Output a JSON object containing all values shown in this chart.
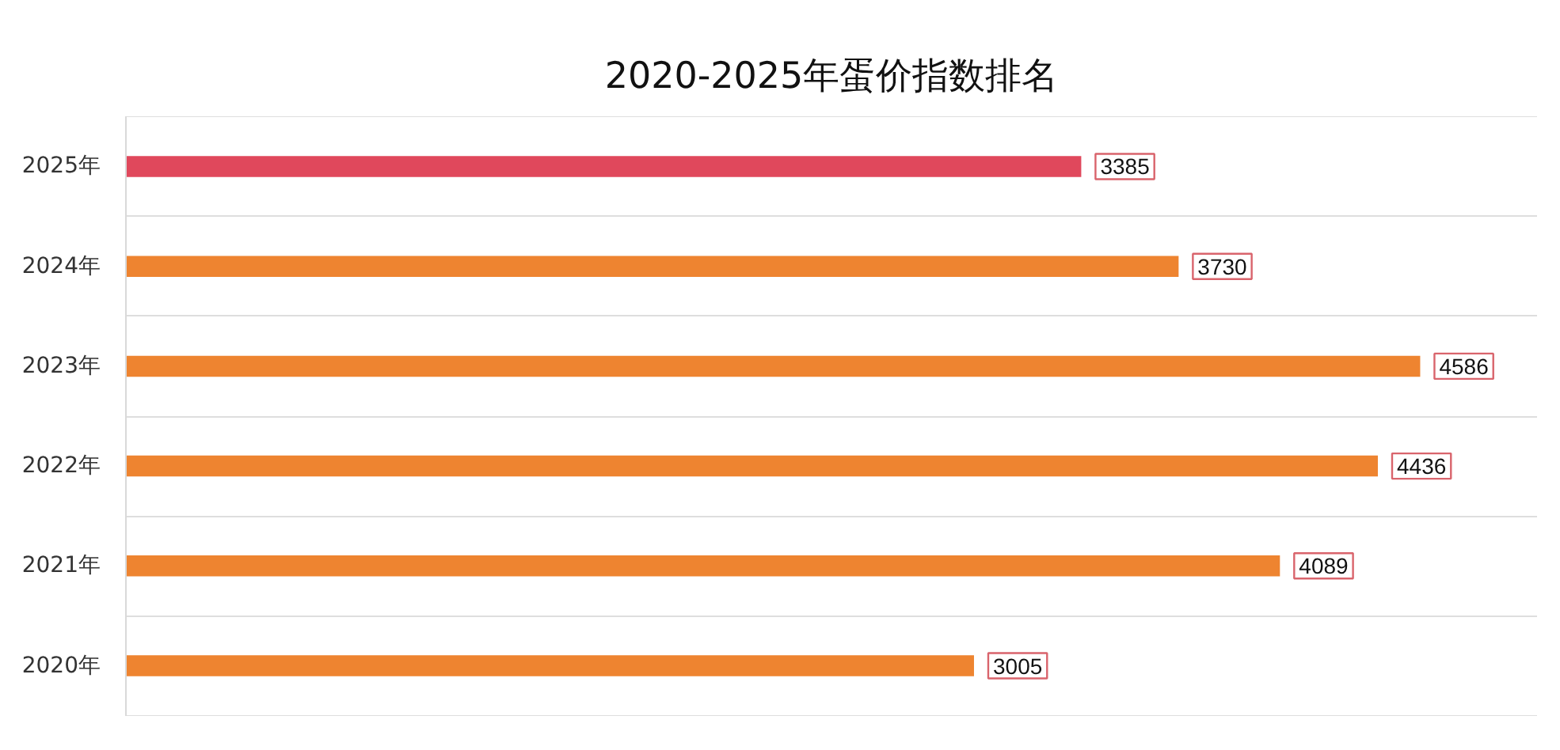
{
  "chart_data": {
    "type": "bar",
    "orientation": "horizontal",
    "title": "2020-2025年蛋价指数排名",
    "categories": [
      "2025年",
      "2024年",
      "2023年",
      "2022年",
      "2021年",
      "2020年"
    ],
    "values": [
      3385,
      3730,
      4586,
      4436,
      4089,
      3005
    ],
    "colors": [
      "#e0485c",
      "#ee8430",
      "#ee8430",
      "#ee8430",
      "#ee8430",
      "#ee8430"
    ],
    "xlim": [
      0,
      5000
    ],
    "data_labels": true,
    "grid": "y",
    "tick_labels": "y"
  }
}
